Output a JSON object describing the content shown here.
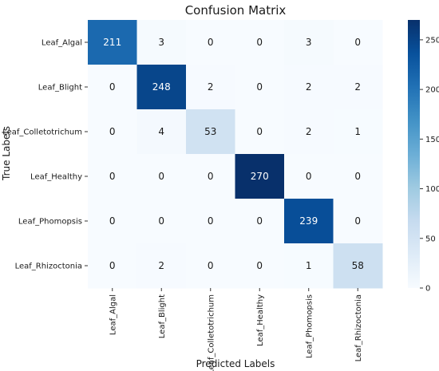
{
  "chart_data": {
    "type": "heatmap",
    "title": "Confusion Matrix",
    "xlabel": "Predicted Labels",
    "ylabel": "True Labels",
    "x_categories": [
      "Leaf_Algal",
      "Leaf_Blight",
      "Leaf_Colletotrichum",
      "Leaf_Healthy",
      "Leaf_Phomopsis",
      "Leaf_Rhizoctonia"
    ],
    "y_categories": [
      "Leaf_Algal",
      "Leaf_Blight",
      "Leaf_Colletotrichum",
      "Leaf_Healthy",
      "Leaf_Phomopsis",
      "Leaf_Rhizoctonia"
    ],
    "values": [
      [
        211,
        3,
        0,
        0,
        3,
        0
      ],
      [
        0,
        248,
        2,
        0,
        2,
        2
      ],
      [
        0,
        4,
        53,
        0,
        2,
        1
      ],
      [
        0,
        0,
        0,
        270,
        0,
        0
      ],
      [
        0,
        0,
        0,
        0,
        239,
        0
      ],
      [
        0,
        2,
        0,
        0,
        1,
        58
      ]
    ],
    "colorbar": {
      "range": [
        0,
        270
      ],
      "ticks": [
        0,
        50,
        100,
        150,
        200,
        250
      ],
      "colormap": "Blues"
    },
    "grid": false
  }
}
